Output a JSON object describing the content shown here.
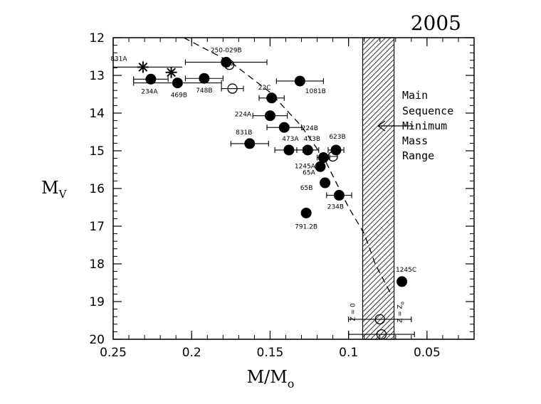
{
  "chart_data": {
    "type": "scatter",
    "title": "2005",
    "xlabel": "M/M",
    "xlabel_sub": "o",
    "ylabel": "M",
    "ylabel_sub": "V",
    "xlim": [
      0.25,
      0.02
    ],
    "ylim": [
      20,
      12
    ],
    "x_ticks": [
      0.25,
      0.2,
      0.15,
      0.1,
      0.05
    ],
    "x_tick_labels": [
      "0.25",
      "0.2",
      "0.15",
      "0.1",
      "0.05"
    ],
    "y_ticks": [
      12,
      13,
      14,
      15,
      16,
      17,
      18,
      19,
      20
    ],
    "y_tick_labels": [
      "12",
      "13",
      "14",
      "15",
      "16",
      "17",
      "18",
      "19",
      "20"
    ],
    "grid": false,
    "band": {
      "x_from": 0.071,
      "x_to": 0.091,
      "hatched": true
    },
    "annotation": {
      "lines": [
        "Main",
        "Sequence",
        "Minimum",
        "Mass",
        "Range"
      ],
      "arrow": "left"
    },
    "dashed_curve": [
      [
        0.205,
        12.0
      ],
      [
        0.175,
        12.65
      ],
      [
        0.15,
        13.45
      ],
      [
        0.13,
        14.35
      ],
      [
        0.115,
        15.25
      ],
      [
        0.1,
        16.5
      ],
      [
        0.09,
        17.2
      ],
      [
        0.083,
        18.0
      ],
      [
        0.073,
        18.8
      ]
    ],
    "filled_points": [
      {
        "label": "234A",
        "x": 0.226,
        "y": 13.1,
        "xerr": 0.011
      },
      {
        "label": "469B",
        "x": 0.209,
        "y": 13.2,
        "xerr": 0.028
      },
      {
        "label": "748B",
        "x": 0.192,
        "y": 13.08,
        "xerr": 0.012
      },
      {
        "label": "250-029B",
        "x": 0.178,
        "y": 12.65,
        "xerr": 0.026
      },
      {
        "label": "1081B",
        "x": 0.131,
        "y": 13.15,
        "xerr": 0.015
      },
      {
        "label": "22C",
        "x": 0.149,
        "y": 13.6,
        "xerr": 0.008
      },
      {
        "label": "224A",
        "x": 0.15,
        "y": 14.07,
        "xerr": 0.011
      },
      {
        "label": "224B",
        "x": 0.141,
        "y": 14.38,
        "xerr": 0.011
      },
      {
        "label": "831B",
        "x": 0.163,
        "y": 14.81,
        "xerr": 0.012
      },
      {
        "label": "473A",
        "x": 0.138,
        "y": 14.98,
        "xerr": 0.009
      },
      {
        "label": "473B",
        "x": 0.126,
        "y": 14.98,
        "xerr": 0.007
      },
      {
        "label": "623B",
        "x": 0.108,
        "y": 14.98,
        "xerr": 0.005
      },
      {
        "label": "1245A",
        "x": 0.116,
        "y": 15.18,
        "xerr": 0.004
      },
      {
        "label": "65A",
        "x": 0.118,
        "y": 15.42,
        "xerr": 0.0
      },
      {
        "label": "65B",
        "x": 0.115,
        "y": 15.85,
        "xerr": 0.0
      },
      {
        "label": "234B",
        "x": 0.106,
        "y": 16.18,
        "xerr": 0.008
      },
      {
        "label": "791.2B",
        "x": 0.127,
        "y": 16.65,
        "xerr": 0.0
      },
      {
        "label": "1245C",
        "x": 0.066,
        "y": 18.47,
        "xerr": 0.002
      }
    ],
    "open_points": [
      {
        "label": "",
        "x": 0.176,
        "y": 12.72,
        "xerr": 0.0
      },
      {
        "label": "",
        "x": 0.174,
        "y": 13.35,
        "xerr": 0.007
      },
      {
        "label": "",
        "x": 0.11,
        "y": 15.15,
        "xerr": 0.0
      },
      {
        "label": "",
        "x": 0.08,
        "y": 19.47,
        "xerr": 0.02
      },
      {
        "label": "",
        "x": 0.079,
        "y": 19.87,
        "xerr": 0.021
      }
    ],
    "star_points": [
      {
        "label": "831A",
        "x": 0.231,
        "y": 12.78,
        "xerr": 0.025
      },
      {
        "label": "",
        "x": 0.213,
        "y": 12.92,
        "xerr": 0.0
      }
    ],
    "vertical_texts": [
      {
        "text": "Z = 0",
        "x": 0.096,
        "y": 19.28
      },
      {
        "text": "Z = Z",
        "sub": "o",
        "x": 0.066,
        "y": 19.28
      }
    ]
  }
}
